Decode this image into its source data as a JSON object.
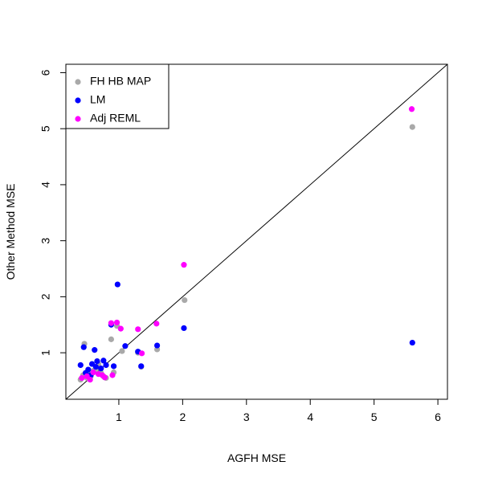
{
  "chart_data": {
    "type": "scatter",
    "xlabel": "AGFH MSE",
    "ylabel": "Other Method MSE",
    "xlim": [
      0.17,
      6.15
    ],
    "ylim": [
      0.17,
      6.15
    ],
    "x_ticks": [
      1,
      2,
      3,
      4,
      5,
      6
    ],
    "y_ticks": [
      1,
      2,
      3,
      4,
      5,
      6
    ],
    "grid": false,
    "legend_position": "top-left",
    "reference_line": "y = x",
    "series": [
      {
        "name": "FH HB MAP",
        "color": "#A9A9A9",
        "points": [
          [
            0.4,
            0.52
          ],
          [
            0.44,
            0.6
          ],
          [
            0.46,
            1.16
          ],
          [
            0.5,
            0.55
          ],
          [
            0.52,
            0.62
          ],
          [
            0.56,
            0.58
          ],
          [
            0.6,
            0.68
          ],
          [
            0.64,
            0.7
          ],
          [
            0.68,
            0.8
          ],
          [
            0.72,
            0.64
          ],
          [
            0.76,
            0.58
          ],
          [
            0.8,
            0.55
          ],
          [
            0.88,
            1.24
          ],
          [
            0.92,
            0.65
          ],
          [
            0.97,
            1.48
          ],
          [
            1.05,
            1.03
          ],
          [
            1.3,
            1.0
          ],
          [
            1.35,
            0.75
          ],
          [
            1.6,
            1.06
          ],
          [
            2.03,
            1.94
          ],
          [
            5.6,
            5.03
          ]
        ]
      },
      {
        "name": "LM",
        "color": "#0000FF",
        "points": [
          [
            0.4,
            0.78
          ],
          [
            0.45,
            1.1
          ],
          [
            0.48,
            0.64
          ],
          [
            0.52,
            0.7
          ],
          [
            0.56,
            0.6
          ],
          [
            0.58,
            0.8
          ],
          [
            0.62,
            1.05
          ],
          [
            0.64,
            0.75
          ],
          [
            0.66,
            0.85
          ],
          [
            0.72,
            0.72
          ],
          [
            0.76,
            0.86
          ],
          [
            0.8,
            0.78
          ],
          [
            0.88,
            1.5
          ],
          [
            0.92,
            0.76
          ],
          [
            0.98,
            2.22
          ],
          [
            1.1,
            1.12
          ],
          [
            1.3,
            1.02
          ],
          [
            1.35,
            0.76
          ],
          [
            1.6,
            1.13
          ],
          [
            2.02,
            1.44
          ],
          [
            5.6,
            1.18
          ]
        ]
      },
      {
        "name": "Adj REML",
        "color": "#FF00FF",
        "points": [
          [
            0.42,
            0.55
          ],
          [
            0.5,
            0.58
          ],
          [
            0.55,
            0.52
          ],
          [
            0.6,
            0.65
          ],
          [
            0.68,
            0.62
          ],
          [
            0.74,
            0.6
          ],
          [
            0.78,
            0.56
          ],
          [
            0.88,
            1.53
          ],
          [
            0.9,
            0.6
          ],
          [
            0.97,
            1.54
          ],
          [
            1.03,
            1.43
          ],
          [
            1.3,
            1.42
          ],
          [
            1.36,
            0.99
          ],
          [
            1.59,
            1.52
          ],
          [
            2.02,
            2.57
          ],
          [
            5.59,
            5.35
          ]
        ]
      }
    ]
  }
}
